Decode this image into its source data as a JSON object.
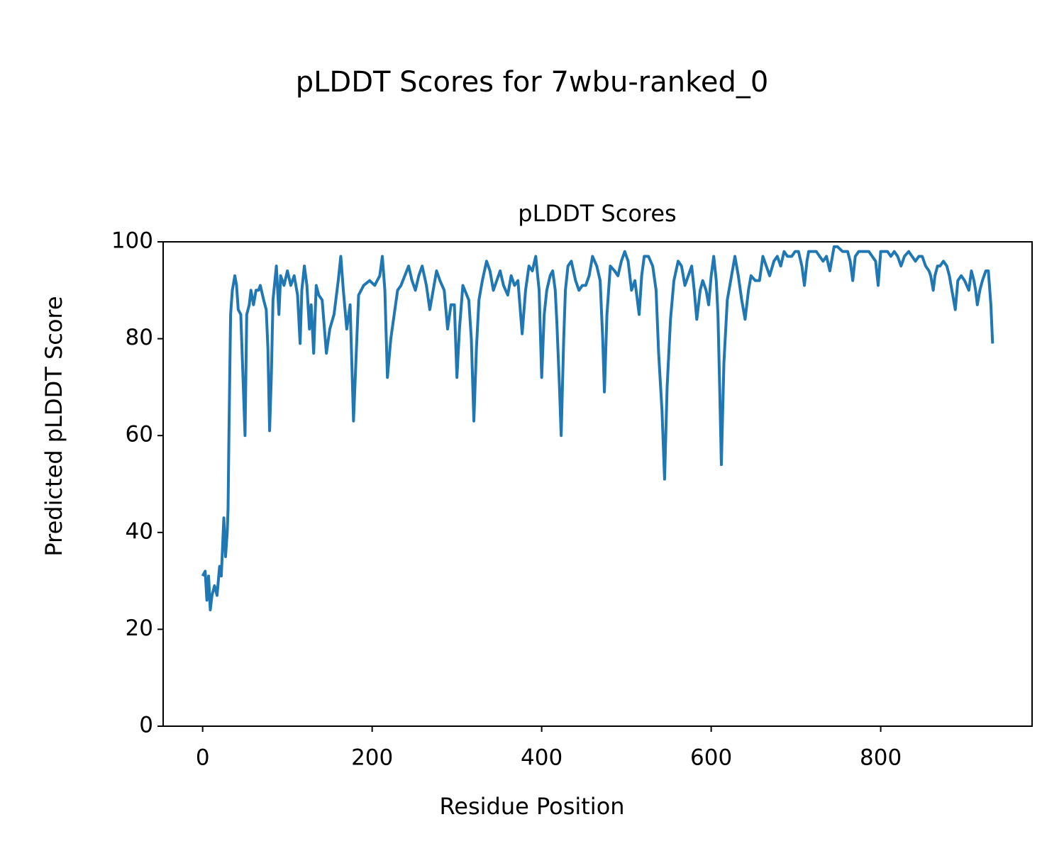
{
  "chart_data": {
    "type": "line",
    "title": "pLDDT Scores for 7wbu-ranked_0",
    "subtitle": "pLDDT Scores",
    "x_label": "Residue Position",
    "y_label": "Predicted pLDDT Score",
    "color": "#1f77b4",
    "x": [
      0,
      3,
      5,
      7,
      9,
      11,
      14,
      17,
      20,
      22,
      25,
      27,
      29,
      30,
      31,
      33,
      35,
      38,
      40,
      42,
      45,
      48,
      50,
      52,
      55,
      57,
      60,
      63,
      66,
      68,
      72,
      75,
      77,
      79,
      81,
      83,
      87,
      90,
      92,
      96,
      100,
      104,
      108,
      112,
      115,
      117,
      120,
      123,
      126,
      128,
      131,
      134,
      137,
      141,
      146,
      150,
      155,
      160,
      163,
      166,
      170,
      174,
      178,
      184,
      190,
      197,
      203,
      209,
      212,
      215,
      218,
      222,
      226,
      230,
      234,
      243,
      247,
      251,
      255,
      259,
      264,
      268,
      272,
      276,
      280,
      285,
      289,
      293,
      297,
      300,
      303,
      307,
      314,
      317,
      320,
      323,
      326,
      330,
      335,
      339,
      343,
      347,
      351,
      355,
      360,
      364,
      368,
      372,
      377,
      381,
      385,
      389,
      393,
      397,
      400,
      403,
      406,
      410,
      413,
      416,
      418,
      421,
      423,
      426,
      428,
      431,
      435,
      440,
      444,
      448,
      452,
      456,
      460,
      465,
      469,
      472,
      474,
      477,
      481,
      486,
      490,
      494,
      498,
      502,
      506,
      510,
      515,
      518,
      521,
      526,
      531,
      535,
      538,
      542,
      545,
      548,
      552,
      556,
      561,
      565,
      569,
      573,
      577,
      580,
      583,
      587,
      590,
      594,
      597,
      600,
      603,
      606,
      608,
      610,
      612,
      615,
      619,
      623,
      628,
      632,
      636,
      640,
      644,
      647,
      652,
      657,
      661,
      665,
      669,
      674,
      678,
      682,
      686,
      690,
      695,
      699,
      703,
      707,
      710,
      713,
      715,
      720,
      724,
      728,
      732,
      736,
      740,
      745,
      749,
      755,
      761,
      764,
      767,
      770,
      774,
      780,
      786,
      790,
      794,
      797,
      800,
      803,
      808,
      812,
      816,
      820,
      824,
      828,
      833,
      837,
      841,
      845,
      849,
      853,
      857,
      859,
      862,
      864,
      867,
      870,
      874,
      878,
      881,
      883,
      886,
      888,
      891,
      895,
      899,
      904,
      907,
      910,
      912,
      914,
      917,
      920,
      924,
      927,
      930,
      932
    ],
    "values": [
      31,
      32,
      26,
      31,
      24,
      27,
      29,
      27,
      33,
      31,
      43,
      35,
      40,
      45,
      60,
      85,
      90,
      93,
      91,
      86,
      85,
      70,
      60,
      85,
      87,
      90,
      87,
      90,
      90,
      91,
      88,
      86,
      78,
      61,
      72,
      88,
      95,
      85,
      93,
      91,
      94,
      91,
      93,
      89,
      79,
      90,
      95,
      91,
      82,
      87,
      77,
      91,
      89,
      88,
      77,
      82,
      85,
      92,
      97,
      90,
      82,
      87,
      63,
      89,
      91,
      92,
      91,
      93,
      97,
      90,
      72,
      80,
      85,
      90,
      91,
      95,
      92,
      90,
      93,
      95,
      91,
      86,
      90,
      94,
      92,
      90,
      82,
      87,
      87,
      72,
      82,
      91,
      88,
      80,
      63,
      78,
      88,
      92,
      96,
      94,
      90,
      92,
      94,
      91,
      89,
      93,
      91,
      92,
      81,
      90,
      95,
      94,
      97,
      90,
      72,
      85,
      90,
      93,
      94,
      90,
      83,
      70,
      60,
      80,
      90,
      95,
      96,
      92,
      90,
      91,
      91,
      93,
      97,
      95,
      92,
      80,
      69,
      85,
      95,
      94,
      93,
      96,
      98,
      96,
      90,
      92,
      85,
      93,
      97,
      97,
      95,
      90,
      77,
      65,
      51,
      70,
      84,
      92,
      96,
      95,
      91,
      93,
      95,
      90,
      84,
      90,
      92,
      90,
      87,
      93,
      97,
      92,
      85,
      70,
      54,
      75,
      88,
      92,
      97,
      93,
      88,
      84,
      90,
      93,
      92,
      92,
      97,
      95,
      93,
      96,
      97,
      95,
      98,
      97,
      97,
      98,
      98,
      95,
      91,
      96,
      98,
      98,
      98,
      97,
      96,
      97,
      94,
      99,
      99,
      98,
      98,
      96,
      92,
      97,
      98,
      98,
      98,
      97,
      96,
      91,
      98,
      98,
      98,
      97,
      98,
      97,
      95,
      97,
      98,
      97,
      96,
      97,
      97,
      95,
      94,
      93,
      90,
      93,
      95,
      95,
      96,
      95,
      93,
      91,
      88,
      86,
      92,
      93,
      92,
      90,
      94,
      92,
      90,
      87,
      90,
      92,
      94,
      94,
      87,
      79
    ],
    "xlim": [
      -46.6,
      978.6
    ],
    "ylim": [
      0,
      100
    ],
    "xticks": [
      0,
      200,
      400,
      600,
      800
    ],
    "yticks": [
      0,
      20,
      40,
      60,
      80,
      100
    ]
  }
}
